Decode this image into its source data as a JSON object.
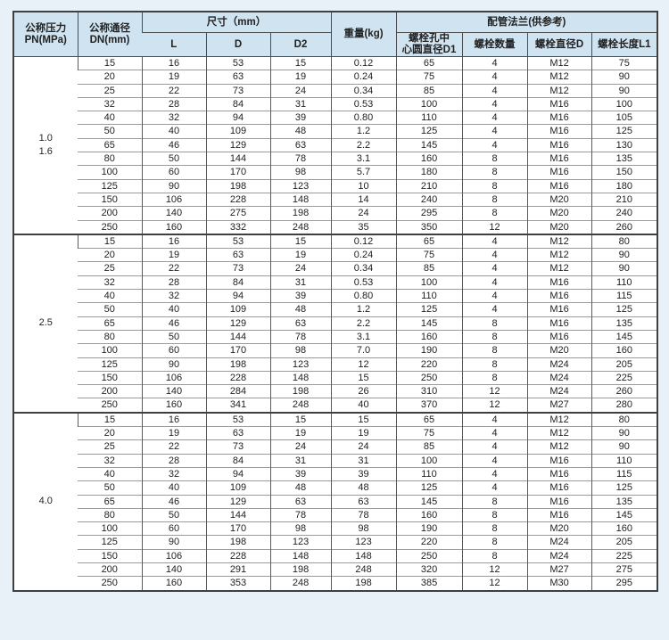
{
  "page_bg": "#e8f1f7",
  "header_bg": "#cfe3f0",
  "border_color": "#3f3f3f",
  "table": {
    "header": {
      "pressure": "公称压力\nPN(MPa)",
      "dn": "公称通径\nDN(mm)",
      "size_group": "尺寸（mm）",
      "size_cols": [
        "L",
        "D",
        "D2"
      ],
      "weight": "重量(kg)",
      "flange_group": "配管法兰(供参考)",
      "flange_cols": [
        "螺栓孔中\n心圆直径D1",
        "螺栓数量",
        "螺栓直径D",
        "螺栓长度L1"
      ]
    },
    "columns": [
      "DN",
      "L",
      "D",
      "D2",
      "weight",
      "D1",
      "bolt_count",
      "bolt_dia",
      "bolt_len"
    ],
    "groups": [
      {
        "pressure": "1.0\n1.6",
        "rows": [
          [
            "15",
            "16",
            "53",
            "15",
            "0.12",
            "65",
            "4",
            "M12",
            "75"
          ],
          [
            "20",
            "19",
            "63",
            "19",
            "0.24",
            "75",
            "4",
            "M12",
            "90"
          ],
          [
            "25",
            "22",
            "73",
            "24",
            "0.34",
            "85",
            "4",
            "M12",
            "90"
          ],
          [
            "32",
            "28",
            "84",
            "31",
            "0.53",
            "100",
            "4",
            "M16",
            "100"
          ],
          [
            "40",
            "32",
            "94",
            "39",
            "0.80",
            "110",
            "4",
            "M16",
            "105"
          ],
          [
            "50",
            "40",
            "109",
            "48",
            "1.2",
            "125",
            "4",
            "M16",
            "125"
          ],
          [
            "65",
            "46",
            "129",
            "63",
            "2.2",
            "145",
            "4",
            "M16",
            "130"
          ],
          [
            "80",
            "50",
            "144",
            "78",
            "3.1",
            "160",
            "8",
            "M16",
            "135"
          ],
          [
            "100",
            "60",
            "170",
            "98",
            "5.7",
            "180",
            "8",
            "M16",
            "150"
          ],
          [
            "125",
            "90",
            "198",
            "123",
            "10",
            "210",
            "8",
            "M16",
            "180"
          ],
          [
            "150",
            "106",
            "228",
            "148",
            "14",
            "240",
            "8",
            "M20",
            "210"
          ],
          [
            "200",
            "140",
            "275",
            "198",
            "24",
            "295",
            "8",
            "M20",
            "240"
          ],
          [
            "250",
            "160",
            "332",
            "248",
            "35",
            "350",
            "12",
            "M20",
            "260"
          ]
        ]
      },
      {
        "pressure": "2.5",
        "rows": [
          [
            "15",
            "16",
            "53",
            "15",
            "0.12",
            "65",
            "4",
            "M12",
            "80"
          ],
          [
            "20",
            "19",
            "63",
            "19",
            "0.24",
            "75",
            "4",
            "M12",
            "90"
          ],
          [
            "25",
            "22",
            "73",
            "24",
            "0.34",
            "85",
            "4",
            "M12",
            "90"
          ],
          [
            "32",
            "28",
            "84",
            "31",
            "0.53",
            "100",
            "4",
            "M16",
            "110"
          ],
          [
            "40",
            "32",
            "94",
            "39",
            "0.80",
            "110",
            "4",
            "M16",
            "115"
          ],
          [
            "50",
            "40",
            "109",
            "48",
            "1.2",
            "125",
            "4",
            "M16",
            "125"
          ],
          [
            "65",
            "46",
            "129",
            "63",
            "2.2",
            "145",
            "8",
            "M16",
            "135"
          ],
          [
            "80",
            "50",
            "144",
            "78",
            "3.1",
            "160",
            "8",
            "M16",
            "145"
          ],
          [
            "100",
            "60",
            "170",
            "98",
            "7.0",
            "190",
            "8",
            "M20",
            "160"
          ],
          [
            "125",
            "90",
            "198",
            "123",
            "12",
            "220",
            "8",
            "M24",
            "205"
          ],
          [
            "150",
            "106",
            "228",
            "148",
            "15",
            "250",
            "8",
            "M24",
            "225"
          ],
          [
            "200",
            "140",
            "284",
            "198",
            "26",
            "310",
            "12",
            "M24",
            "260"
          ],
          [
            "250",
            "160",
            "341",
            "248",
            "40",
            "370",
            "12",
            "M27",
            "280"
          ]
        ]
      },
      {
        "pressure": "4.0",
        "rows": [
          [
            "15",
            "16",
            "53",
            "15",
            "15",
            "65",
            "4",
            "M12",
            "80"
          ],
          [
            "20",
            "19",
            "63",
            "19",
            "19",
            "75",
            "4",
            "M12",
            "90"
          ],
          [
            "25",
            "22",
            "73",
            "24",
            "24",
            "85",
            "4",
            "M12",
            "90"
          ],
          [
            "32",
            "28",
            "84",
            "31",
            "31",
            "100",
            "4",
            "M16",
            "110"
          ],
          [
            "40",
            "32",
            "94",
            "39",
            "39",
            "110",
            "4",
            "M16",
            "115"
          ],
          [
            "50",
            "40",
            "109",
            "48",
            "48",
            "125",
            "4",
            "M16",
            "125"
          ],
          [
            "65",
            "46",
            "129",
            "63",
            "63",
            "145",
            "8",
            "M16",
            "135"
          ],
          [
            "80",
            "50",
            "144",
            "78",
            "78",
            "160",
            "8",
            "M16",
            "145"
          ],
          [
            "100",
            "60",
            "170",
            "98",
            "98",
            "190",
            "8",
            "M20",
            "160"
          ],
          [
            "125",
            "90",
            "198",
            "123",
            "123",
            "220",
            "8",
            "M24",
            "205"
          ],
          [
            "150",
            "106",
            "228",
            "148",
            "148",
            "250",
            "8",
            "M24",
            "225"
          ],
          [
            "200",
            "140",
            "291",
            "198",
            "248",
            "320",
            "12",
            "M27",
            "275"
          ],
          [
            "250",
            "160",
            "353",
            "248",
            "198",
            "385",
            "12",
            "M30",
            "295"
          ]
        ]
      }
    ]
  }
}
